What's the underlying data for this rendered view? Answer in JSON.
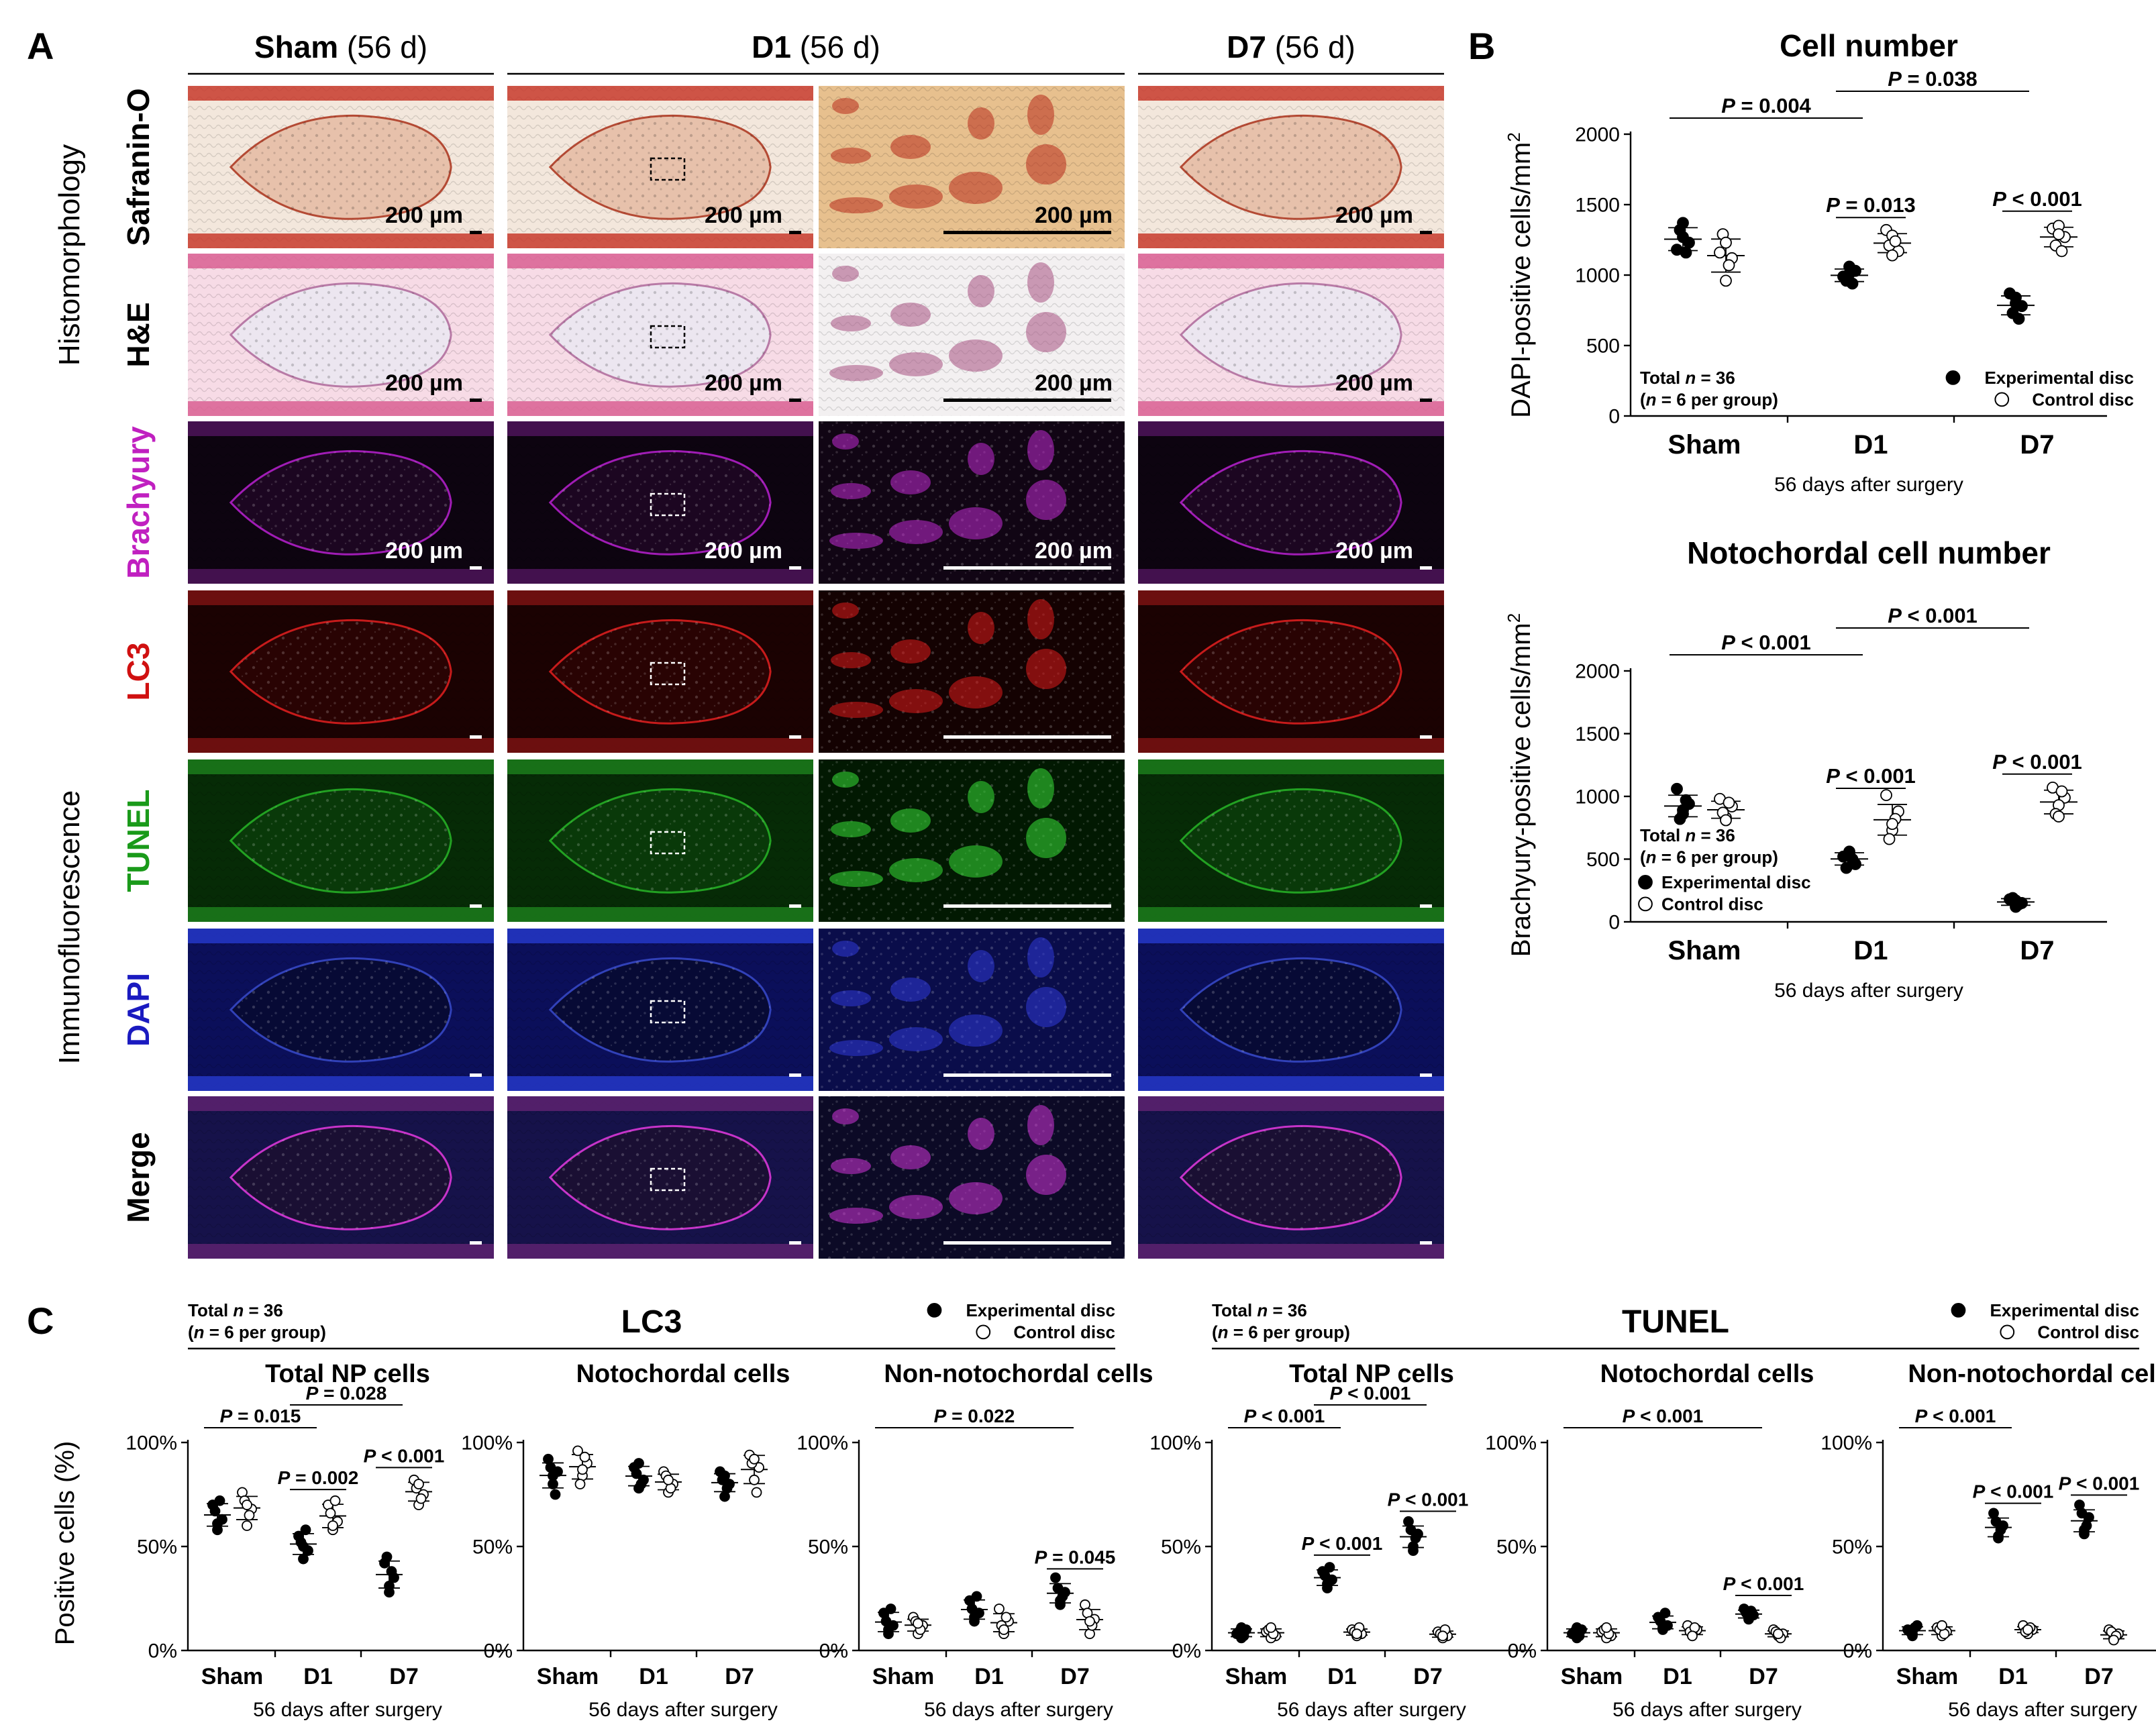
{
  "panel_letters": {
    "A": "A",
    "B": "B",
    "C": "C"
  },
  "panelA": {
    "columns": [
      {
        "bold": "Sham",
        "rest": "(56 d)"
      },
      {
        "bold": "D1",
        "rest": "(56 d)"
      },
      {
        "bold": "D7",
        "rest": "(56 d)"
      }
    ],
    "section_labels": {
      "histo": "Histomorphology",
      "immuno": "Immunofluorescence"
    },
    "rows": [
      {
        "label": "Safranin-O",
        "label_color": "#000000",
        "tissue": "safranin"
      },
      {
        "label": "H&E",
        "label_color": "#000000",
        "tissue": "he"
      },
      {
        "label": "Brachyury",
        "label_color": "#c020c0",
        "tissue": "brachyury"
      },
      {
        "label": "LC3",
        "label_color": "#d01010",
        "tissue": "lc3"
      },
      {
        "label": "TUNEL",
        "label_color": "#1a9a1a",
        "tissue": "tunel"
      },
      {
        "label": "DAPI",
        "label_color": "#1a1ac0",
        "tissue": "dapi"
      },
      {
        "label": "Merge",
        "label_color": "#000000",
        "tissue": "merge"
      }
    ],
    "scale_label": "200 µm",
    "scale_label_rows": [
      0,
      1,
      2
    ]
  },
  "panelB": {
    "legend": {
      "experimental": "Experimental disc",
      "control": "Control disc"
    },
    "xlabel": "56 days after surgery",
    "total_n": "Total n = 36",
    "per_group": "(n = 6 per group)"
  },
  "panelC": {
    "legend": {
      "experimental": "Experimental disc",
      "control": "Control disc"
    },
    "total_n": "Total n = 36",
    "per_group": "(n = 6 per group)",
    "groups": [
      {
        "title": "LC3"
      },
      {
        "title": "TUNEL"
      }
    ],
    "ylabel": "Positive cells (%)"
  },
  "chart_data": [
    {
      "id": "B1",
      "type": "scatter",
      "title": "Cell number",
      "ylabel": "DAPI-positive cells/mm2",
      "xlabel": "56 days after surgery",
      "categories": [
        "Sham",
        "D1",
        "D7"
      ],
      "ylim": [
        0,
        2000
      ],
      "yticks": [
        0,
        500,
        1000,
        1500,
        2000
      ],
      "ytick_labels": [
        "0",
        "500",
        "1000",
        "1500",
        "2000"
      ],
      "series": [
        {
          "name": "Experimental disc",
          "values": [
            [
              1180,
              1230,
              1270,
              1320,
              1160,
              1370
            ],
            [
              990,
              1030,
              1060,
              960,
              940,
              1010
            ],
            [
              870,
              780,
              840,
              730,
              690,
              800
            ]
          ]
        },
        {
          "name": "Control disc",
          "values": [
            [
              1160,
              1120,
              960,
              1290,
              1070,
              1230
            ],
            [
              1320,
              1170,
              1280,
              1210,
              1240,
              1140
            ],
            [
              1330,
              1270,
              1350,
              1210,
              1170,
              1290
            ]
          ]
        }
      ],
      "annotations": [
        {
          "text": "P = 0.004",
          "from": "Sham-exp",
          "to": "D1-exp"
        },
        {
          "text": "P = 0.038",
          "from": "D1-exp",
          "to": "D7-exp"
        },
        {
          "text": "P = 0.013",
          "from": "D1-exp",
          "to": "D1-ctrl"
        },
        {
          "text": "P < 0.001",
          "from": "D7-exp",
          "to": "D7-ctrl"
        }
      ]
    },
    {
      "id": "B2",
      "type": "scatter",
      "title": "Notochordal cell number",
      "ylabel": "Brachyury-positive cells/mm2",
      "xlabel": "56 days after surgery",
      "categories": [
        "Sham",
        "D1",
        "D7"
      ],
      "ylim": [
        0,
        2000
      ],
      "yticks": [
        0,
        500,
        1000,
        1500,
        2000
      ],
      "ytick_labels": [
        "0",
        "500",
        "1000",
        "1500",
        "2000"
      ],
      "series": [
        {
          "name": "Experimental disc",
          "values": [
            [
              1060,
              940,
              890,
              820,
              970,
              860
            ],
            [
              520,
              460,
              560,
              430,
              500,
              540
            ],
            [
              180,
              150,
              120,
              190,
              140,
              170
            ]
          ]
        },
        {
          "name": "Control disc",
          "values": [
            [
              980,
              920,
              830,
              870,
              950,
              810
            ],
            [
              1010,
              880,
              730,
              660,
              820,
              780
            ],
            [
              1070,
              990,
              930,
              860,
              1040,
              840
            ]
          ]
        }
      ],
      "annotations": [
        {
          "text": "P < 0.001",
          "from": "Sham-exp",
          "to": "D1-exp"
        },
        {
          "text": "P < 0.001",
          "from": "D1-exp",
          "to": "D7-exp"
        },
        {
          "text": "P < 0.001",
          "from": "D1-exp",
          "to": "D1-ctrl"
        },
        {
          "text": "P < 0.001",
          "from": "D7-exp",
          "to": "D7-ctrl"
        }
      ]
    },
    {
      "id": "C1",
      "type": "scatter",
      "title": "Total NP cells",
      "group": "LC3",
      "ylabel": "Positive cells (%)",
      "xlabel": "56 days after surgery",
      "categories": [
        "Sham",
        "D1",
        "D7"
      ],
      "ylim": [
        0,
        100
      ],
      "yticks": [
        0,
        50,
        100
      ],
      "ytick_labels": [
        "0%",
        "50%",
        "100%"
      ],
      "series": [
        {
          "name": "Experimental disc",
          "values": [
            [
              70,
              63,
              58,
              67,
              72,
              61
            ],
            [
              55,
              48,
              44,
              52,
              58,
              50
            ],
            [
              42,
              35,
              28,
              45,
              38,
              31
            ]
          ]
        },
        {
          "name": "Control disc",
          "values": [
            [
              76,
              68,
              60,
              72,
              65,
              70
            ],
            [
              70,
              62,
              58,
              66,
              72,
              60
            ],
            [
              82,
              75,
              70,
              78,
              73,
              80
            ]
          ]
        }
      ],
      "annotations": [
        {
          "text": "P = 0.015",
          "from": "Sham-exp",
          "to": "D1-exp"
        },
        {
          "text": "P = 0.028",
          "from": "D1-exp",
          "to": "D7-exp"
        },
        {
          "text": "P = 0.002",
          "from": "D1-exp",
          "to": "D1-ctrl"
        },
        {
          "text": "P < 0.001",
          "from": "D7-exp",
          "to": "D7-ctrl"
        }
      ]
    },
    {
      "id": "C2",
      "type": "scatter",
      "title": "Notochordal cells",
      "group": "LC3",
      "ylabel": "",
      "xlabel": "56 days after surgery",
      "categories": [
        "Sham",
        "D1",
        "D7"
      ],
      "ylim": [
        0,
        100
      ],
      "yticks": [
        0,
        50,
        100
      ],
      "ytick_labels": [
        "0%",
        "50%",
        "100%"
      ],
      "series": [
        {
          "name": "Experimental disc",
          "values": [
            [
              92,
              86,
              80,
              88,
              75,
              84
            ],
            [
              88,
              82,
              78,
              85,
              80,
              90
            ],
            [
              86,
              80,
              74,
              82,
              78,
              84
            ]
          ]
        },
        {
          "name": "Control disc",
          "values": [
            [
              96,
              90,
              84,
              80,
              93,
              87
            ],
            [
              86,
              80,
              76,
              84,
              78,
              82
            ],
            [
              94,
              88,
              82,
              90,
              76,
              92
            ]
          ]
        }
      ],
      "annotations": []
    },
    {
      "id": "C3",
      "type": "scatter",
      "title": "Non-notochordal cells",
      "group": "LC3",
      "ylabel": "",
      "xlabel": "56 days after surgery",
      "categories": [
        "Sham",
        "D1",
        "D7"
      ],
      "ylim": [
        0,
        100
      ],
      "yticks": [
        0,
        50,
        100
      ],
      "ytick_labels": [
        "0%",
        "50%",
        "100%"
      ],
      "series": [
        {
          "name": "Experimental disc",
          "values": [
            [
              18,
              12,
              8,
              14,
              20,
              10
            ],
            [
              24,
              18,
              14,
              20,
              26,
              16
            ],
            [
              35,
              28,
              22,
              30,
              26,
              24
            ]
          ]
        },
        {
          "name": "Control disc",
          "values": [
            [
              16,
              12,
              8,
              14,
              10,
              13
            ],
            [
              20,
              14,
              8,
              12,
              16,
              10
            ],
            [
              22,
              15,
              8,
              18,
              12,
              14
            ]
          ]
        }
      ],
      "annotations": [
        {
          "text": "P = 0.022",
          "from": "Sham-exp",
          "to": "D7-exp"
        },
        {
          "text": "P = 0.045",
          "from": "D7-exp",
          "to": "D7-ctrl"
        }
      ]
    },
    {
      "id": "C4",
      "type": "scatter",
      "title": "Total NP cells",
      "group": "TUNEL",
      "ylabel": "",
      "xlabel": "56 days after surgery",
      "categories": [
        "Sham",
        "D1",
        "D7"
      ],
      "ylim": [
        0,
        100
      ],
      "yticks": [
        0,
        50,
        100
      ],
      "ytick_labels": [
        "0%",
        "50%",
        "100%"
      ],
      "series": [
        {
          "name": "Experimental disc",
          "values": [
            [
              8,
              10,
              6,
              9,
              7,
              11
            ],
            [
              38,
              34,
              30,
              36,
              40,
              32
            ],
            [
              62,
              56,
              50,
              58,
              54,
              48
            ]
          ]
        },
        {
          "name": "Control disc",
          "values": [
            [
              9,
              7,
              6,
              10,
              8,
              11
            ],
            [
              10,
              8,
              7,
              9,
              11,
              8
            ],
            [
              9,
              7,
              6,
              8,
              10,
              7
            ]
          ]
        }
      ],
      "annotations": [
        {
          "text": "P < 0.001",
          "from": "Sham-exp",
          "to": "D1-exp"
        },
        {
          "text": "P < 0.001",
          "from": "D1-exp",
          "to": "D7-exp"
        },
        {
          "text": "P < 0.001",
          "from": "D1-exp",
          "to": "D1-ctrl"
        },
        {
          "text": "P < 0.001",
          "from": "D7-exp",
          "to": "D7-ctrl"
        }
      ]
    },
    {
      "id": "C5",
      "type": "scatter",
      "title": "Notochordal cells",
      "group": "TUNEL",
      "ylabel": "",
      "xlabel": "56 days after surgery",
      "categories": [
        "Sham",
        "D1",
        "D7"
      ],
      "ylim": [
        0,
        100
      ],
      "yticks": [
        0,
        50,
        100
      ],
      "ytick_labels": [
        "0%",
        "50%",
        "100%"
      ],
      "series": [
        {
          "name": "Experimental disc",
          "values": [
            [
              8,
              10,
              6,
              9,
              7,
              11
            ],
            [
              16,
              12,
              10,
              14,
              18,
              11
            ],
            [
              20,
              17,
              15,
              18,
              19,
              16
            ]
          ]
        },
        {
          "name": "Control disc",
          "values": [
            [
              9,
              7,
              6,
              10,
              8,
              11
            ],
            [
              12,
              10,
              8,
              9,
              11,
              7
            ],
            [
              10,
              8,
              7,
              9,
              6,
              8
            ]
          ]
        }
      ],
      "annotations": [
        {
          "text": "P < 0.001",
          "from": "Sham-exp",
          "to": "D7-exp"
        },
        {
          "text": "P < 0.001",
          "from": "D7-exp",
          "to": "D7-ctrl"
        }
      ]
    },
    {
      "id": "C6",
      "type": "scatter",
      "title": "Non-notochordal cells",
      "group": "TUNEL",
      "ylabel": "",
      "xlabel": "56 days after surgery",
      "categories": [
        "Sham",
        "D1",
        "D7"
      ],
      "ylim": [
        0,
        100
      ],
      "yticks": [
        0,
        50,
        100
      ],
      "ytick_labels": [
        "0%",
        "50%",
        "100%"
      ],
      "series": [
        {
          "name": "Experimental disc",
          "values": [
            [
              10,
              12,
              7,
              9,
              11,
              8
            ],
            [
              66,
              60,
              55,
              62,
              58,
              54
            ],
            [
              70,
              64,
              58,
              66,
              60,
              56
            ]
          ]
        },
        {
          "name": "Control disc",
          "values": [
            [
              11,
              9,
              7,
              10,
              8,
              12
            ],
            [
              12,
              10,
              8,
              9,
              11,
              10
            ],
            [
              10,
              8,
              6,
              9,
              7,
              5
            ]
          ]
        }
      ],
      "annotations": [
        {
          "text": "P < 0.001",
          "from": "Sham-exp",
          "to": "D1-exp"
        },
        {
          "text": "P < 0.001",
          "from": "D1-exp",
          "to": "D1-ctrl"
        },
        {
          "text": "P < 0.001",
          "from": "D7-exp",
          "to": "D7-ctrl"
        }
      ]
    }
  ]
}
